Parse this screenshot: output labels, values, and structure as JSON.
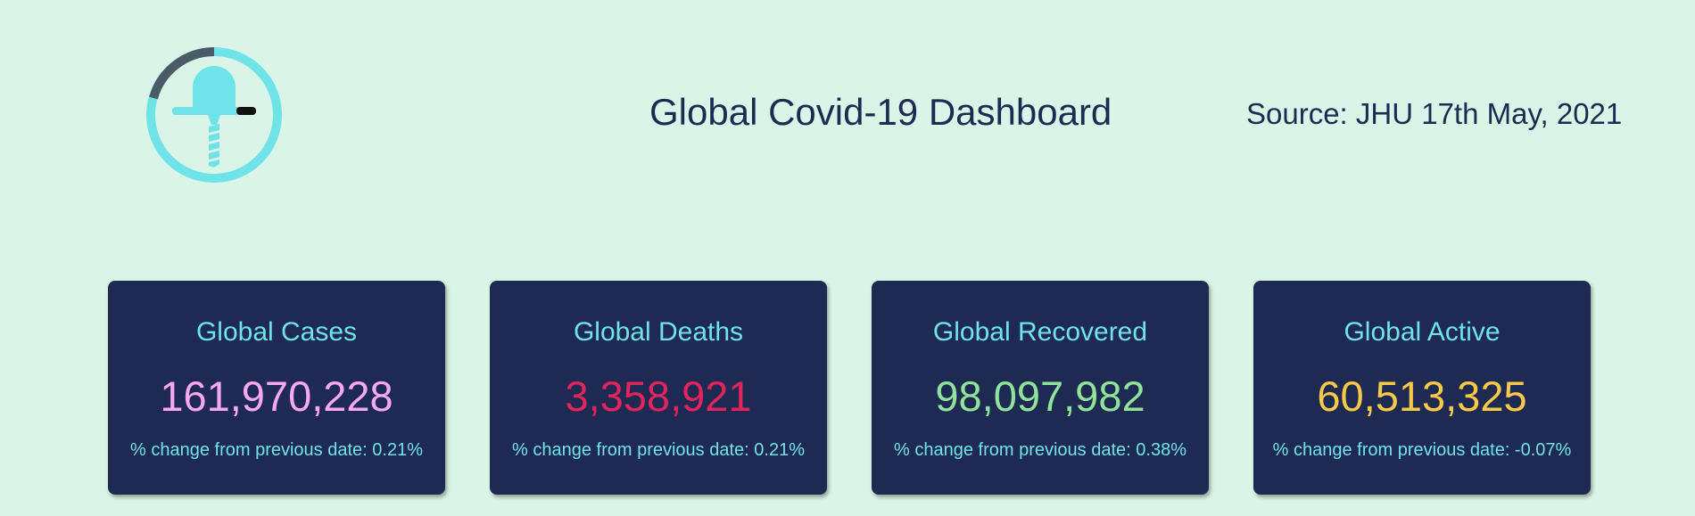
{
  "header": {
    "title": "Global Covid-19 Dashboard",
    "source": "Source: JHU 17th May, 2021",
    "logo_icon": "covid-ring-logo-icon"
  },
  "cards": [
    {
      "title": "Global Cases",
      "value": "161,970,228",
      "change": "% change from previous date: 0.21%",
      "value_color": "#f7a8f0"
    },
    {
      "title": "Global Deaths",
      "value": "3,358,921",
      "change": "% change from previous date: 0.21%",
      "value_color": "#e0245e"
    },
    {
      "title": "Global Recovered",
      "value": "98,097,982",
      "change": "% change from previous date: 0.38%",
      "value_color": "#8fe39b"
    },
    {
      "title": "Global Active",
      "value": "60,513,325",
      "change": "% change from previous date: -0.07%",
      "value_color": "#f7c948"
    }
  ],
  "colors": {
    "background": "#daf5e8",
    "card_bg": "#1e2a52",
    "accent": "#6ee3e8",
    "text_dark": "#1e2a52"
  }
}
